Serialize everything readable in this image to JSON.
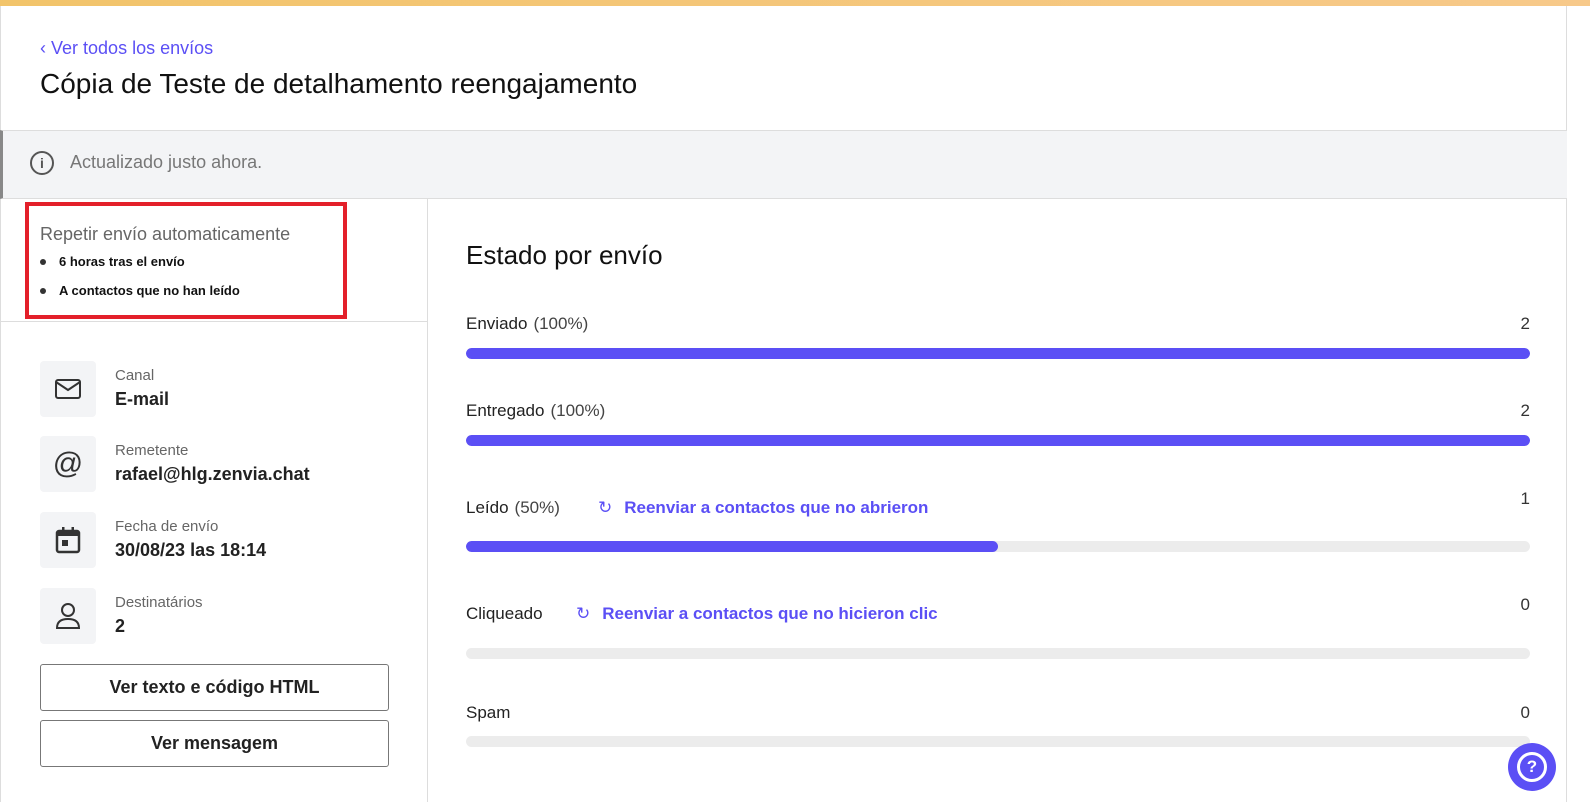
{
  "header": {
    "back_link": "Ver todos los envíos",
    "title": "Cópia de Teste de detalhamento reengajamento"
  },
  "banner": {
    "icon": "info-icon",
    "text": "Actualizado justo ahora."
  },
  "repeat": {
    "heading": "Repetir envío automaticamente",
    "items": [
      "6 horas tras el envío",
      "A contactos que no han leído"
    ]
  },
  "details": [
    {
      "icon": "mail-icon",
      "label": "Canal",
      "value": "E-mail"
    },
    {
      "icon": "at-icon",
      "label": "Remetente",
      "value": "rafael@hlg.zenvia.chat"
    },
    {
      "icon": "calendar-icon",
      "label": "Fecha de envío",
      "value": "30/08/23 las 18:14"
    },
    {
      "icon": "user-icon",
      "label": "Destinatários",
      "value": "2"
    }
  ],
  "buttons": {
    "html": "Ver texto e código HTML",
    "message": "Ver mensagem"
  },
  "status": {
    "title": "Estado por envío",
    "accent": "#5b4ff5",
    "rows": [
      {
        "label": "Enviado",
        "pct": "(100%)",
        "count": "2",
        "fill": 100
      },
      {
        "label": "Entregado",
        "pct": "(100%)",
        "count": "2",
        "fill": 100
      },
      {
        "label": "Leído",
        "pct": "(50%)",
        "count": "1",
        "fill": 50,
        "action": "Reenviar a contactos que no abrieron"
      },
      {
        "label": "Cliqueado",
        "pct": "",
        "count": "0",
        "fill": 0,
        "action": "Reenviar a contactos que no hicieron clic"
      },
      {
        "label": "Spam",
        "pct": "",
        "count": "0",
        "fill": 0
      }
    ]
  },
  "help": {
    "icon": "help-icon"
  }
}
